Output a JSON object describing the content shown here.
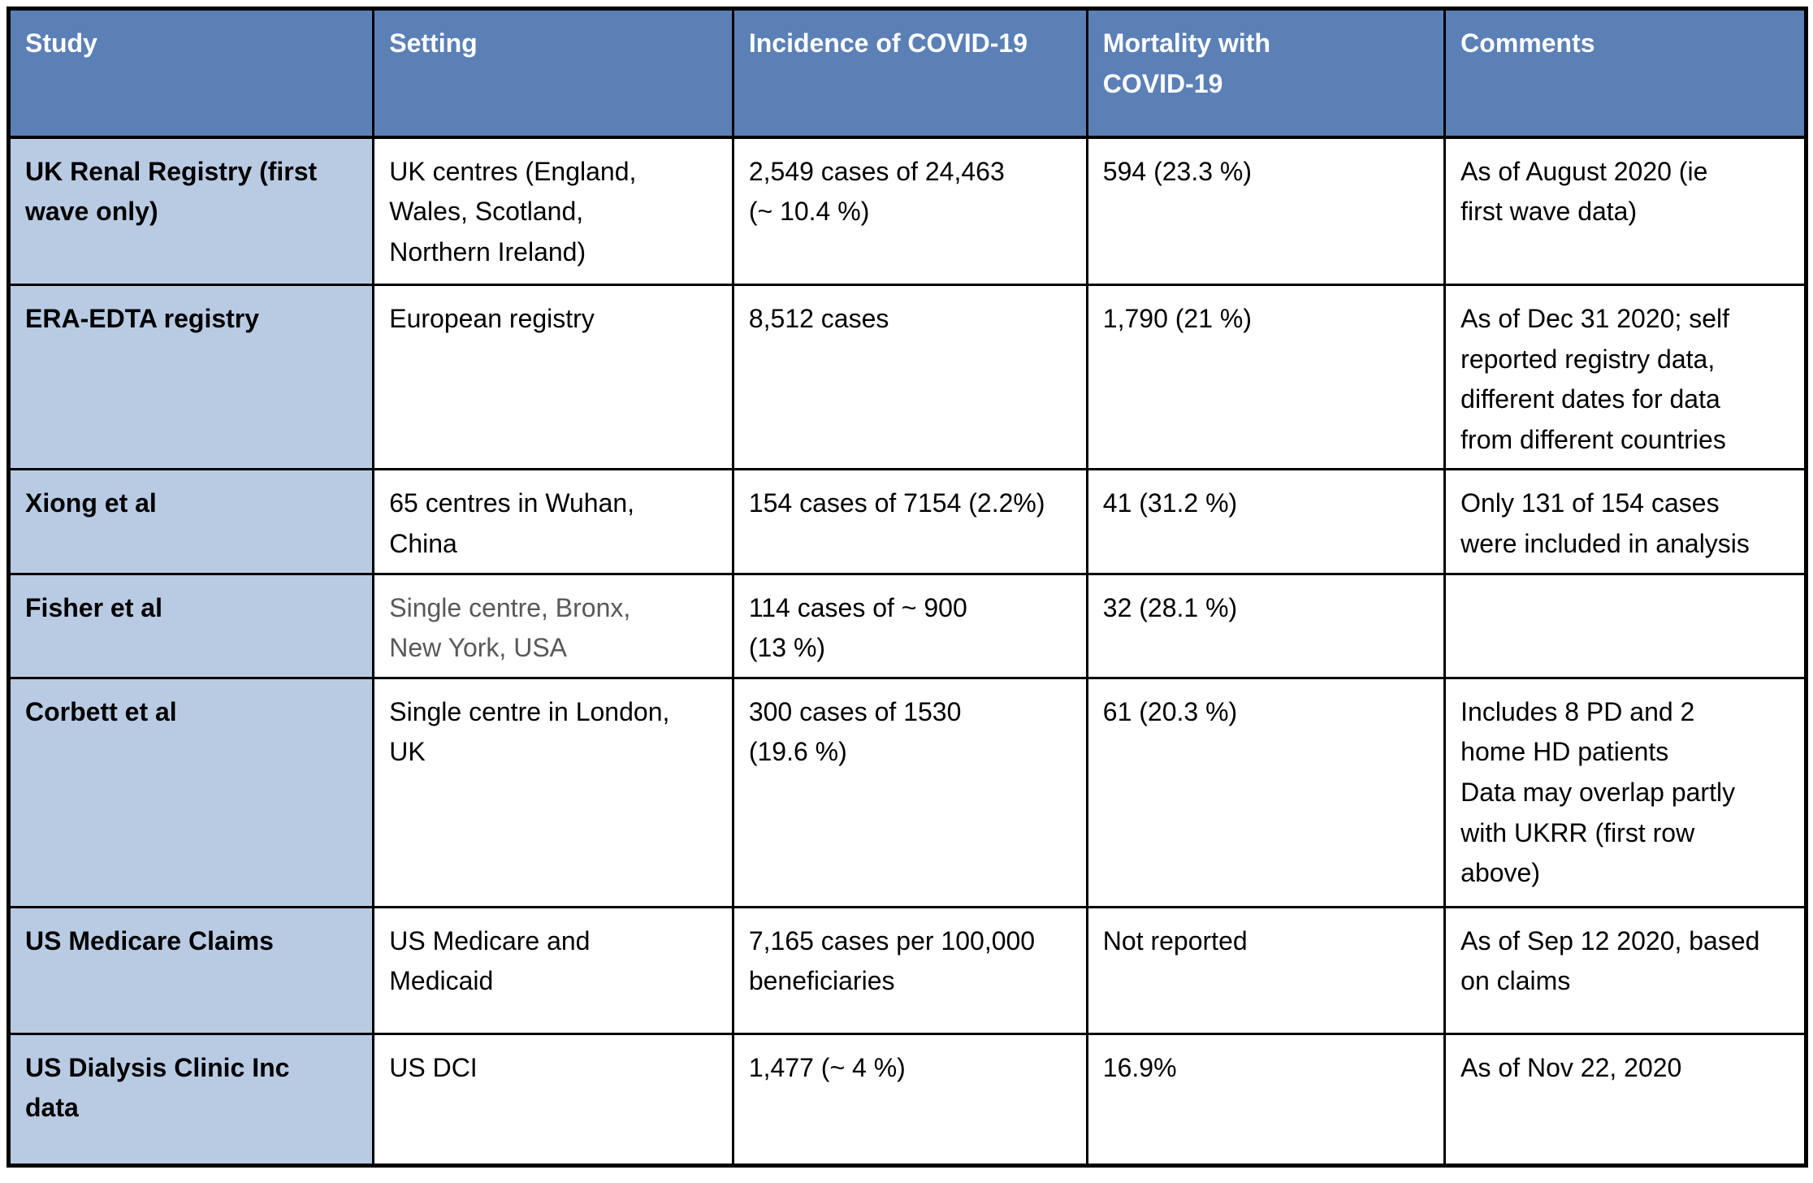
{
  "table": {
    "colors": {
      "header_bg": "#5b80b6",
      "header_text": "#ffffff",
      "study_column_bg": "#b9cbe3",
      "body_text": "#000000",
      "muted_text": "#595959",
      "border": "#000000"
    },
    "columns": [
      {
        "label": "Study"
      },
      {
        "label": "Setting"
      },
      {
        "label": "Incidence of COVID-19"
      },
      {
        "label": "Mortality with\nCOVID-19"
      },
      {
        "label": "Comments"
      }
    ],
    "rows": [
      {
        "study": "UK Renal Registry (first\nwave only)",
        "setting": "UK centres (England,\nWales, Scotland,\nNorthern Ireland)",
        "incidence": "2,549 cases of 24,463\n(~ 10.4 %)",
        "mortality": "594 (23.3 %)",
        "comments": "As of August 2020 (ie\nfirst wave data)"
      },
      {
        "study": "ERA-EDTA registry",
        "setting": "European registry",
        "incidence": "8,512 cases",
        "mortality": "1,790 (21 %)",
        "comments": "As of Dec 31 2020; self\nreported registry data,\ndifferent dates for data\nfrom different countries"
      },
      {
        "study": "Xiong et al",
        "setting": "65 centres in Wuhan,\nChina",
        "incidence": "154 cases of 7154 (2.2%)",
        "mortality": "41 (31.2 %)",
        "comments": "Only 131 of 154 cases\nwere included in analysis"
      },
      {
        "study": "Fisher et al",
        "setting": "Single centre, Bronx,\nNew York, USA",
        "incidence": "114 cases of ~ 900\n(13 %)",
        "mortality": "32 (28.1 %)",
        "comments": ""
      },
      {
        "study": "Corbett et al",
        "setting": "Single centre in London,\nUK",
        "incidence": "300 cases of 1530\n(19.6 %)",
        "mortality": "61 (20.3 %)",
        "comments": "Includes 8 PD and 2\nhome HD patients\nData may overlap partly\nwith UKRR (first row\nabove)"
      },
      {
        "study": "US Medicare Claims",
        "setting": "US Medicare and\nMedicaid",
        "incidence": "7,165 cases per 100,000\nbeneficiaries",
        "mortality": "Not reported",
        "comments": "As of Sep 12 2020, based\non claims"
      },
      {
        "study": "US Dialysis Clinic Inc\ndata",
        "setting": "US DCI",
        "incidence": "1,477 (~ 4 %)",
        "mortality": "16.9%",
        "comments": "As of Nov 22, 2020"
      }
    ]
  }
}
